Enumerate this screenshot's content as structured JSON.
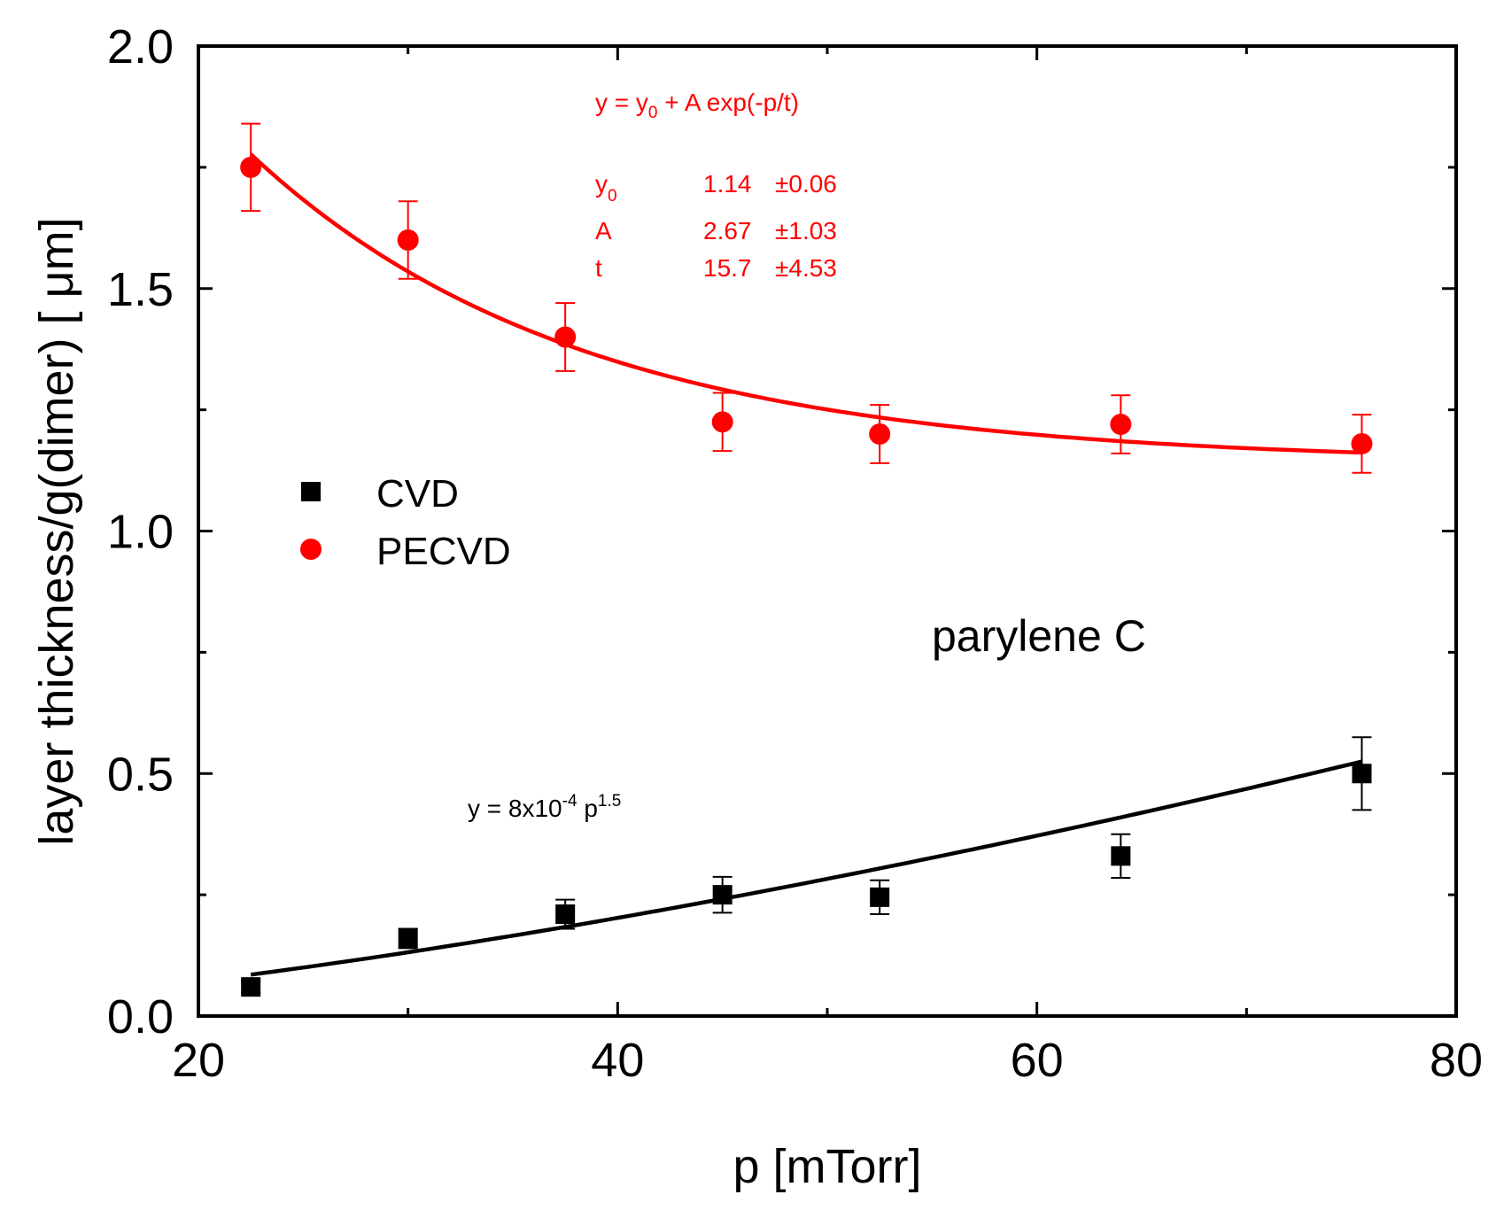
{
  "chart_data": {
    "type": "scatter",
    "title": "",
    "xlabel": "p [mTorr]",
    "ylabel": "layer thickness/g(dimer) [ μm]",
    "xlim": [
      20,
      80
    ],
    "ylim": [
      0,
      2
    ],
    "xticks": [
      "20",
      "40",
      "60",
      "80"
    ],
    "yticks": [
      "0.0",
      "0.5",
      "1.0",
      "1.5",
      "2.0"
    ],
    "grid": false,
    "legend_position": "center-left",
    "series": [
      {
        "name": "CVD",
        "color": "#000000",
        "marker": "square",
        "x": [
          22.5,
          30,
          37.5,
          45,
          52.5,
          64,
          75.5
        ],
        "y": [
          0.06,
          0.16,
          0.21,
          0.25,
          0.245,
          0.33,
          0.5
        ],
        "yerr": [
          0.012,
          0.02,
          0.03,
          0.037,
          0.035,
          0.045,
          0.075
        ],
        "fit": {
          "type": "power",
          "a": 0.0008,
          "b": 1.5,
          "x_range": [
            22.5,
            75.5
          ]
        }
      },
      {
        "name": "PECVD",
        "color": "#ff0000",
        "marker": "circle",
        "x": [
          22.5,
          30,
          37.5,
          45,
          52.5,
          64,
          75.5
        ],
        "y": [
          1.75,
          1.6,
          1.4,
          1.225,
          1.2,
          1.22,
          1.18
        ],
        "yerr": [
          0.09,
          0.08,
          0.07,
          0.06,
          0.06,
          0.06,
          0.06
        ],
        "fit": {
          "type": "exp",
          "y0": 1.14,
          "A": 2.67,
          "t": 15.7,
          "x_range": [
            22.5,
            75.5
          ]
        }
      }
    ],
    "annotations": {
      "sample": "parylene C",
      "cvd_fit": {
        "prefix": "y = 8x10",
        "exp1": "-4",
        "mid": " p",
        "exp2": "1.5"
      },
      "pecvd_fit": {
        "eq_prefix": "y = y",
        "eq_sub": "0",
        "eq_suffix": "  + A exp(-p/t)",
        "params": [
          {
            "name": "y",
            "sub": "0",
            "value": "1.14",
            "err": "±0.06"
          },
          {
            "name": "A",
            "sub": "",
            "value": "2.67",
            "err": "±1.03"
          },
          {
            "name": "t",
            "sub": "",
            "value": "15.7",
            "err": "±4.53"
          }
        ]
      }
    }
  }
}
